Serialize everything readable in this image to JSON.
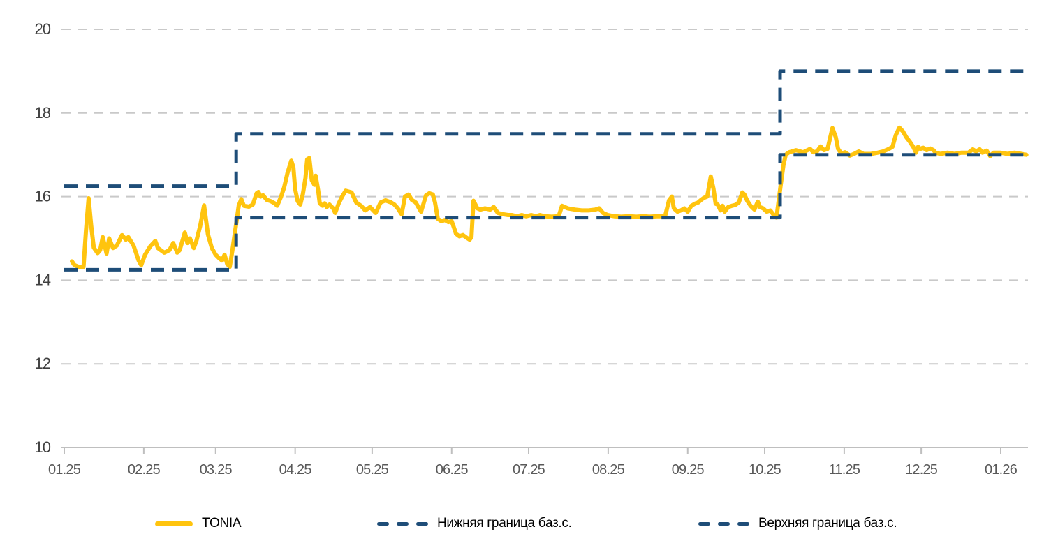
{
  "chart_data": {
    "type": "line",
    "title": "",
    "xlabel": "",
    "ylabel": "",
    "grid": "horizontal-dashed",
    "legend_position": "bottom",
    "x_axis": {
      "unit": "month.year (MM.YY)",
      "tick_labels": [
        "01.25",
        "02.25",
        "03.25",
        "04.25",
        "05.25",
        "06.25",
        "07.25",
        "08.25",
        "09.25",
        "10.25",
        "11.25",
        "12.25",
        "01.26"
      ],
      "tick_days": [
        0,
        31,
        59,
        90,
        120,
        151,
        181,
        212,
        243,
        273,
        304,
        334,
        365
      ],
      "domain_days": [
        0,
        375
      ]
    },
    "y_axis": {
      "ticks": [
        10,
        12,
        14,
        16,
        18,
        20
      ],
      "range": [
        10,
        20
      ]
    },
    "series": [
      {
        "id": "tonia",
        "name": "TONIA",
        "color": "#FFC40E",
        "style": "solid",
        "points": [
          [
            3,
            14.45
          ],
          [
            4,
            14.36
          ],
          [
            6,
            14.31
          ],
          [
            7.5,
            14.32
          ],
          [
            8.5,
            15.2
          ],
          [
            9.5,
            15.96
          ],
          [
            10.5,
            15.3
          ],
          [
            11.5,
            14.78
          ],
          [
            13,
            14.65
          ],
          [
            14,
            14.72
          ],
          [
            15,
            15.03
          ],
          [
            16.5,
            14.64
          ],
          [
            17.5,
            15.0
          ],
          [
            19,
            14.77
          ],
          [
            20.5,
            14.83
          ],
          [
            22.5,
            15.08
          ],
          [
            24,
            14.97
          ],
          [
            25,
            15.03
          ],
          [
            27,
            14.83
          ],
          [
            29,
            14.47
          ],
          [
            30,
            14.36
          ],
          [
            31.5,
            14.61
          ],
          [
            33.5,
            14.81
          ],
          [
            35.5,
            14.94
          ],
          [
            36.5,
            14.77
          ],
          [
            39,
            14.66
          ],
          [
            41,
            14.72
          ],
          [
            42.5,
            14.89
          ],
          [
            44,
            14.66
          ],
          [
            45,
            14.72
          ],
          [
            47,
            15.14
          ],
          [
            48,
            14.89
          ],
          [
            49,
            15.0
          ],
          [
            50.5,
            14.77
          ],
          [
            51.5,
            14.94
          ],
          [
            53,
            15.3
          ],
          [
            54.5,
            15.79
          ],
          [
            56,
            15.1
          ],
          [
            57.5,
            14.77
          ],
          [
            59,
            14.61
          ],
          [
            60.5,
            14.52
          ],
          [
            61.5,
            14.47
          ],
          [
            62.5,
            14.61
          ],
          [
            63.5,
            14.39
          ],
          [
            64.5,
            14.32
          ],
          [
            65.5,
            14.7
          ],
          [
            67,
            15.35
          ],
          [
            68,
            15.78
          ],
          [
            69,
            15.94
          ],
          [
            70,
            15.78
          ],
          [
            72,
            15.76
          ],
          [
            73.5,
            15.81
          ],
          [
            75,
            16.08
          ],
          [
            75.7,
            16.11
          ],
          [
            76.5,
            16.0
          ],
          [
            77.5,
            16.03
          ],
          [
            79,
            15.92
          ],
          [
            80.5,
            15.89
          ],
          [
            82,
            15.84
          ],
          [
            83,
            15.78
          ],
          [
            84.5,
            16.0
          ],
          [
            85.7,
            16.22
          ],
          [
            87,
            16.56
          ],
          [
            88.5,
            16.86
          ],
          [
            89.3,
            16.7
          ],
          [
            90,
            16.17
          ],
          [
            91,
            15.89
          ],
          [
            92,
            15.81
          ],
          [
            93,
            16.06
          ],
          [
            94,
            16.44
          ],
          [
            94.7,
            16.89
          ],
          [
            95.5,
            16.92
          ],
          [
            96.5,
            16.39
          ],
          [
            97.5,
            16.28
          ],
          [
            98,
            16.5
          ],
          [
            99,
            16.14
          ],
          [
            99.6,
            15.84
          ],
          [
            100.7,
            15.78
          ],
          [
            101.5,
            15.84
          ],
          [
            102.3,
            15.75
          ],
          [
            103.4,
            15.81
          ],
          [
            104.8,
            15.72
          ],
          [
            105.6,
            15.61
          ],
          [
            107,
            15.84
          ],
          [
            108.3,
            16.0
          ],
          [
            109.7,
            16.14
          ],
          [
            112,
            16.1
          ],
          [
            113.8,
            15.86
          ],
          [
            115.7,
            15.78
          ],
          [
            117.3,
            15.67
          ],
          [
            119.2,
            15.75
          ],
          [
            121.4,
            15.61
          ],
          [
            123.3,
            15.86
          ],
          [
            125.2,
            15.91
          ],
          [
            127.4,
            15.86
          ],
          [
            128.7,
            15.81
          ],
          [
            130,
            15.72
          ],
          [
            131.5,
            15.58
          ],
          [
            132.8,
            16.0
          ],
          [
            134.2,
            16.05
          ],
          [
            135.5,
            15.92
          ],
          [
            137,
            15.86
          ],
          [
            138.3,
            15.72
          ],
          [
            139.1,
            15.64
          ],
          [
            141,
            16.03
          ],
          [
            142.3,
            16.08
          ],
          [
            143.7,
            16.05
          ],
          [
            144.5,
            15.86
          ],
          [
            145.6,
            15.47
          ],
          [
            147,
            15.41
          ],
          [
            148.3,
            15.44
          ],
          [
            149.7,
            15.39
          ],
          [
            151,
            15.41
          ],
          [
            152,
            15.24
          ],
          [
            152.7,
            15.11
          ],
          [
            154,
            15.05
          ],
          [
            155.4,
            15.08
          ],
          [
            156.5,
            15.03
          ],
          [
            158,
            14.97
          ],
          [
            158.7,
            15.03
          ],
          [
            159.5,
            15.9
          ],
          [
            161,
            15.72
          ],
          [
            162.2,
            15.69
          ],
          [
            164,
            15.72
          ],
          [
            166,
            15.69
          ],
          [
            167.4,
            15.75
          ],
          [
            169,
            15.61
          ],
          [
            171,
            15.58
          ],
          [
            173,
            15.56
          ],
          [
            174.5,
            15.56
          ],
          [
            176.4,
            15.53
          ],
          [
            178.3,
            15.56
          ],
          [
            180,
            15.53
          ],
          [
            182,
            15.56
          ],
          [
            183.7,
            15.53
          ],
          [
            185.4,
            15.56
          ],
          [
            187.3,
            15.53
          ],
          [
            190,
            15.52
          ],
          [
            192.7,
            15.53
          ],
          [
            194,
            15.78
          ],
          [
            196.2,
            15.72
          ],
          [
            199,
            15.69
          ],
          [
            201.7,
            15.67
          ],
          [
            204.4,
            15.67
          ],
          [
            207,
            15.69
          ],
          [
            208.5,
            15.72
          ],
          [
            210,
            15.61
          ],
          [
            211.8,
            15.56
          ],
          [
            214.5,
            15.53
          ],
          [
            217,
            15.52
          ],
          [
            220,
            15.53
          ],
          [
            223,
            15.52
          ],
          [
            226,
            15.53
          ],
          [
            228,
            15.52
          ],
          [
            231,
            15.53
          ],
          [
            233,
            15.53
          ],
          [
            234.3,
            15.56
          ],
          [
            235.7,
            15.91
          ],
          [
            236.8,
            16.0
          ],
          [
            237.6,
            15.72
          ],
          [
            239,
            15.64
          ],
          [
            240.3,
            15.67
          ],
          [
            241.7,
            15.72
          ],
          [
            243,
            15.64
          ],
          [
            244.4,
            15.78
          ],
          [
            245.8,
            15.83
          ],
          [
            247.1,
            15.86
          ],
          [
            248,
            15.91
          ],
          [
            249.3,
            15.97
          ],
          [
            250.6,
            16.0
          ],
          [
            252,
            16.48
          ],
          [
            253,
            16.2
          ],
          [
            253.9,
            15.83
          ],
          [
            254.7,
            15.81
          ],
          [
            255.8,
            15.67
          ],
          [
            256.6,
            15.78
          ],
          [
            257.4,
            15.64
          ],
          [
            258.8,
            15.75
          ],
          [
            260.2,
            15.78
          ],
          [
            261.5,
            15.8
          ],
          [
            262.9,
            15.86
          ],
          [
            264.3,
            16.1
          ],
          [
            265.1,
            16.05
          ],
          [
            266.2,
            15.9
          ],
          [
            267.5,
            15.78
          ],
          [
            269,
            15.69
          ],
          [
            270.3,
            15.88
          ],
          [
            271.1,
            15.75
          ],
          [
            272.4,
            15.72
          ],
          [
            273.8,
            15.64
          ],
          [
            275.2,
            15.67
          ],
          [
            276.5,
            15.56
          ],
          [
            277.6,
            15.5
          ],
          [
            279.3,
            16.3
          ],
          [
            280.3,
            16.75
          ],
          [
            281.2,
            17.0
          ],
          [
            282.5,
            17.06
          ],
          [
            285.2,
            17.11
          ],
          [
            288,
            17.06
          ],
          [
            290.7,
            17.14
          ],
          [
            292,
            17.06
          ],
          [
            293.4,
            17.08
          ],
          [
            294.8,
            17.2
          ],
          [
            296.1,
            17.11
          ],
          [
            297.5,
            17.14
          ],
          [
            299.4,
            17.64
          ],
          [
            300.7,
            17.42
          ],
          [
            301.6,
            17.14
          ],
          [
            302.9,
            17.03
          ],
          [
            304.3,
            17.06
          ],
          [
            306.2,
            16.98
          ],
          [
            307.8,
            17.02
          ],
          [
            309.7,
            17.08
          ],
          [
            311.6,
            17.02
          ],
          [
            314.4,
            17.02
          ],
          [
            317.1,
            17.05
          ],
          [
            319.2,
            17.08
          ],
          [
            321.4,
            17.14
          ],
          [
            322.8,
            17.19
          ],
          [
            324.1,
            17.47
          ],
          [
            325.5,
            17.65
          ],
          [
            326.9,
            17.56
          ],
          [
            328.2,
            17.42
          ],
          [
            329.6,
            17.31
          ],
          [
            330.9,
            17.19
          ],
          [
            332,
            17.05
          ],
          [
            332.8,
            17.19
          ],
          [
            333.7,
            17.14
          ],
          [
            334.7,
            17.17
          ],
          [
            336.1,
            17.11
          ],
          [
            337.5,
            17.15
          ],
          [
            338.8,
            17.11
          ],
          [
            339.6,
            17.05
          ],
          [
            341.5,
            17.02
          ],
          [
            344.3,
            17.05
          ],
          [
            347,
            17.02
          ],
          [
            349.7,
            17.05
          ],
          [
            352.4,
            17.05
          ],
          [
            354.1,
            17.13
          ],
          [
            355.4,
            17.08
          ],
          [
            356.8,
            17.13
          ],
          [
            357.9,
            17.05
          ],
          [
            359.5,
            17.1
          ],
          [
            360.9,
            16.97
          ],
          [
            362.2,
            17.05
          ],
          [
            364.9,
            17.05
          ],
          [
            367.7,
            17.02
          ],
          [
            370.4,
            17.05
          ],
          [
            373.1,
            17.02
          ],
          [
            375,
            17.0
          ]
        ]
      },
      {
        "id": "lower-bound",
        "name": "Нижняя граница баз.с.",
        "color": "#1E4D78",
        "style": "dashed",
        "points": [
          [
            0,
            14.25
          ],
          [
            67,
            14.25
          ],
          [
            67,
            15.5
          ],
          [
            279,
            15.5
          ],
          [
            279,
            17.0
          ],
          [
            375,
            17.0
          ]
        ]
      },
      {
        "id": "upper-bound",
        "name": "Верхняя граница баз.с.",
        "color": "#1E4D78",
        "style": "dashed",
        "points": [
          [
            0,
            16.25
          ],
          [
            67,
            16.25
          ],
          [
            67,
            17.5
          ],
          [
            279,
            17.5
          ],
          [
            279,
            19.0
          ],
          [
            375,
            19.0
          ]
        ]
      }
    ]
  },
  "colors": {
    "background": "#ffffff",
    "gridline": "#C9C9C9",
    "axis": "#BFBFBF",
    "y_tick_label": "#404040",
    "x_tick_label": "#595959",
    "legend_text": "#595959"
  }
}
